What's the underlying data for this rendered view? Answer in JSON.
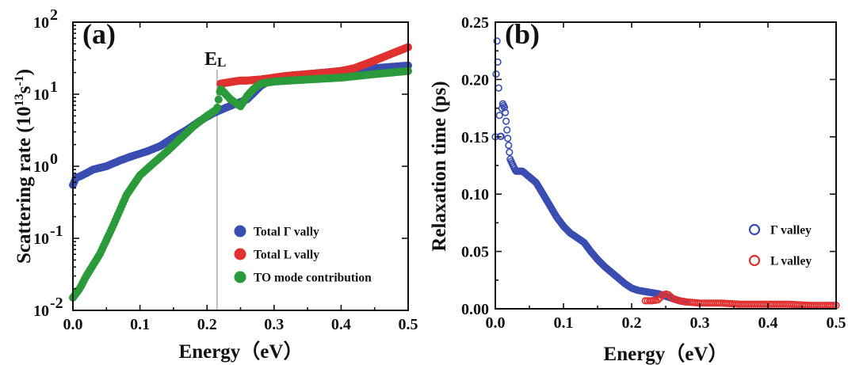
{
  "chart_data": [
    {
      "panel": "(a)",
      "type": "scatter",
      "xlabel": "Energy（eV）",
      "ylabel": "Scattering rate (10^13 s^-1)",
      "yscale": "log",
      "xlim": [
        0.0,
        0.5
      ],
      "ylim": [
        0.01,
        100
      ],
      "x_ticks": [
        "0.0",
        "0.1",
        "0.2",
        "0.3",
        "0.4",
        "0.5"
      ],
      "y_ticks": [
        {
          "base": "10",
          "exp": "-2"
        },
        {
          "base": "10",
          "exp": "-1"
        },
        {
          "base": "10",
          "exp": "0"
        },
        {
          "base": "10",
          "exp": "1"
        },
        {
          "base": "10",
          "exp": "2"
        }
      ],
      "ylabel_parts": {
        "main": "Scattering rate (10",
        "sup1": "13",
        "mid": "s",
        "sup2": "-1",
        "end": ")"
      },
      "vline": {
        "x": 0.215,
        "label": "E",
        "label_sub": "L"
      },
      "legend_position": "bottom-right",
      "series": [
        {
          "name": "Total Γ  vally",
          "color": "#3a4db0",
          "x": [
            0.0,
            0.005,
            0.01,
            0.02,
            0.03,
            0.05,
            0.07,
            0.09,
            0.11,
            0.13,
            0.15,
            0.17,
            0.19,
            0.21,
            0.23,
            0.24,
            0.25,
            0.26,
            0.27,
            0.28,
            0.3,
            0.32,
            0.35,
            0.4,
            0.45,
            0.5
          ],
          "y": [
            0.55,
            0.7,
            0.72,
            0.8,
            0.9,
            1.0,
            1.2,
            1.4,
            1.6,
            1.9,
            2.5,
            3.2,
            4.3,
            5.5,
            6.6,
            7.2,
            7.8,
            8.5,
            10.5,
            13,
            17,
            18,
            19,
            21,
            23,
            25
          ]
        },
        {
          "name": "Total L vally",
          "color": "#e03030",
          "x": [
            0.22,
            0.23,
            0.24,
            0.25,
            0.26,
            0.28,
            0.3,
            0.32,
            0.35,
            0.38,
            0.4,
            0.42,
            0.44,
            0.46,
            0.48,
            0.5
          ],
          "y": [
            14,
            14.5,
            15,
            15.5,
            15.5,
            16,
            17,
            18,
            19,
            20,
            21,
            23,
            27,
            32,
            38,
            45
          ]
        },
        {
          "name": "TO mode contribution",
          "color": "#2a9a3a",
          "x": [
            0.0,
            0.01,
            0.02,
            0.04,
            0.06,
            0.08,
            0.1,
            0.12,
            0.14,
            0.16,
            0.18,
            0.2,
            0.215,
            0.22,
            0.235,
            0.25,
            0.26,
            0.27,
            0.28,
            0.3,
            0.35,
            0.4,
            0.45,
            0.5
          ],
          "y": [
            0.015,
            0.02,
            0.03,
            0.06,
            0.15,
            0.4,
            0.75,
            1.1,
            1.6,
            2.4,
            3.6,
            5.0,
            6.2,
            12,
            8.5,
            6.8,
            9.5,
            12,
            14,
            15,
            16,
            17,
            19,
            21
          ]
        }
      ]
    },
    {
      "panel": "(b)",
      "type": "scatter",
      "xlabel": "Energy（eV）",
      "ylabel": "Relaxation time (ps)",
      "xlim": [
        0.0,
        0.5
      ],
      "ylim": [
        0.0,
        0.25
      ],
      "x_ticks": [
        "0.0",
        "0.1",
        "0.2",
        "0.3",
        "0.4",
        "0.5"
      ],
      "y_ticks": [
        "0.00",
        "0.05",
        "0.10",
        "0.15",
        "0.20",
        "0.25"
      ],
      "legend_position": "right",
      "series": [
        {
          "name": "Γ valley",
          "color": "#3a4db0",
          "x": [
            0.0,
            0.002,
            0.004,
            0.006,
            0.008,
            0.01,
            0.014,
            0.018,
            0.022,
            0.03,
            0.04,
            0.05,
            0.06,
            0.07,
            0.08,
            0.09,
            0.1,
            0.11,
            0.12,
            0.13,
            0.14,
            0.15,
            0.16,
            0.17,
            0.18,
            0.19,
            0.2,
            0.21,
            0.22,
            0.23,
            0.24,
            0.25,
            0.26,
            0.27,
            0.28
          ],
          "y": [
            0.15,
            0.24,
            0.21,
            0.17,
            0.14,
            0.18,
            0.175,
            0.15,
            0.13,
            0.12,
            0.12,
            0.115,
            0.11,
            0.1,
            0.09,
            0.08,
            0.072,
            0.066,
            0.062,
            0.058,
            0.05,
            0.043,
            0.037,
            0.032,
            0.027,
            0.022,
            0.018,
            0.016,
            0.015,
            0.014,
            0.013,
            0.011,
            0.009,
            0.007,
            0.006
          ]
        },
        {
          "name": "L valley",
          "color": "#e03030",
          "x": [
            0.22,
            0.23,
            0.24,
            0.245,
            0.25,
            0.255,
            0.26,
            0.27,
            0.28,
            0.3,
            0.33,
            0.36,
            0.4,
            0.43,
            0.46,
            0.5
          ],
          "y": [
            0.007,
            0.007,
            0.008,
            0.012,
            0.013,
            0.012,
            0.009,
            0.007,
            0.006,
            0.005,
            0.005,
            0.004,
            0.004,
            0.004,
            0.003,
            0.003
          ]
        }
      ]
    }
  ]
}
